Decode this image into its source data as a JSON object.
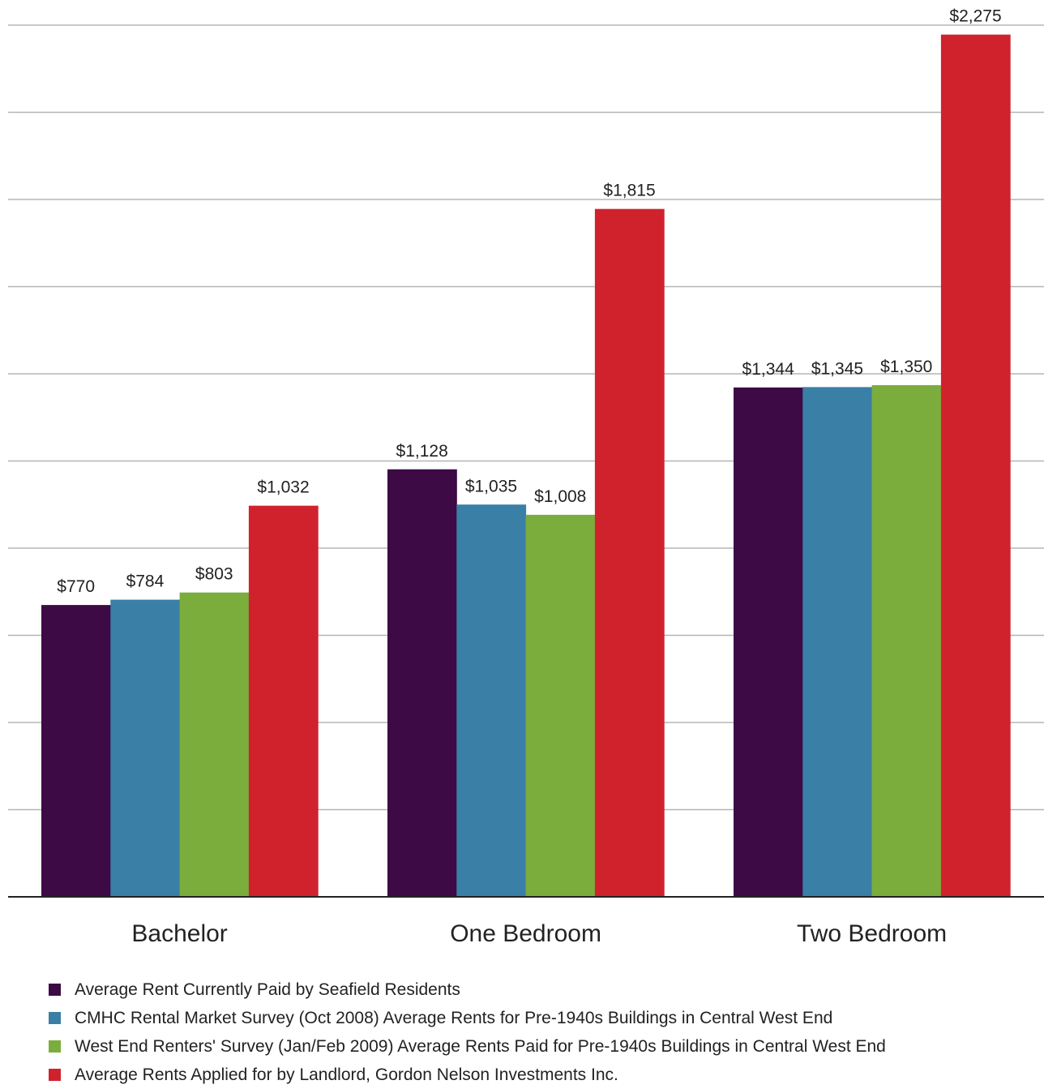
{
  "chart_data": {
    "type": "bar",
    "categories": [
      "Bachelor",
      "One Bedroom",
      "Two Bedroom"
    ],
    "series": [
      {
        "name": "Average Rent Currently Paid by Seafield Residents",
        "color": "#3d0a45",
        "values": [
          770,
          1128,
          1344
        ],
        "labels": [
          "$770",
          "$1,128",
          "$1,344"
        ]
      },
      {
        "name": "CMHC Rental Market Survey (Oct 2008) Average Rents for Pre-1940s Buildings in Central West End",
        "color": "#3a7fa6",
        "values": [
          784,
          1035,
          1345
        ],
        "labels": [
          "$784",
          "$1,035",
          "$1,345"
        ]
      },
      {
        "name": "West End Renters' Survey (Jan/Feb 2009) Average Rents Paid for Pre-1940s Buildings in Central West End",
        "color": "#7bad3d",
        "values": [
          803,
          1008,
          1350
        ],
        "labels": [
          "$803",
          "$1,008",
          "$1,350"
        ]
      },
      {
        "name": "Average Rents Applied for by Landlord, Gordon Nelson Investments Inc.",
        "color": "#d0222d",
        "values": [
          1032,
          1815,
          2275
        ],
        "labels": [
          "$1,032",
          "$1,815",
          "$2,275"
        ]
      }
    ],
    "ylim": [
      0,
      2300
    ],
    "grid": true,
    "gridline_count": 10,
    "legend_position": "bottom",
    "title": "",
    "xlabel": "",
    "ylabel": ""
  }
}
